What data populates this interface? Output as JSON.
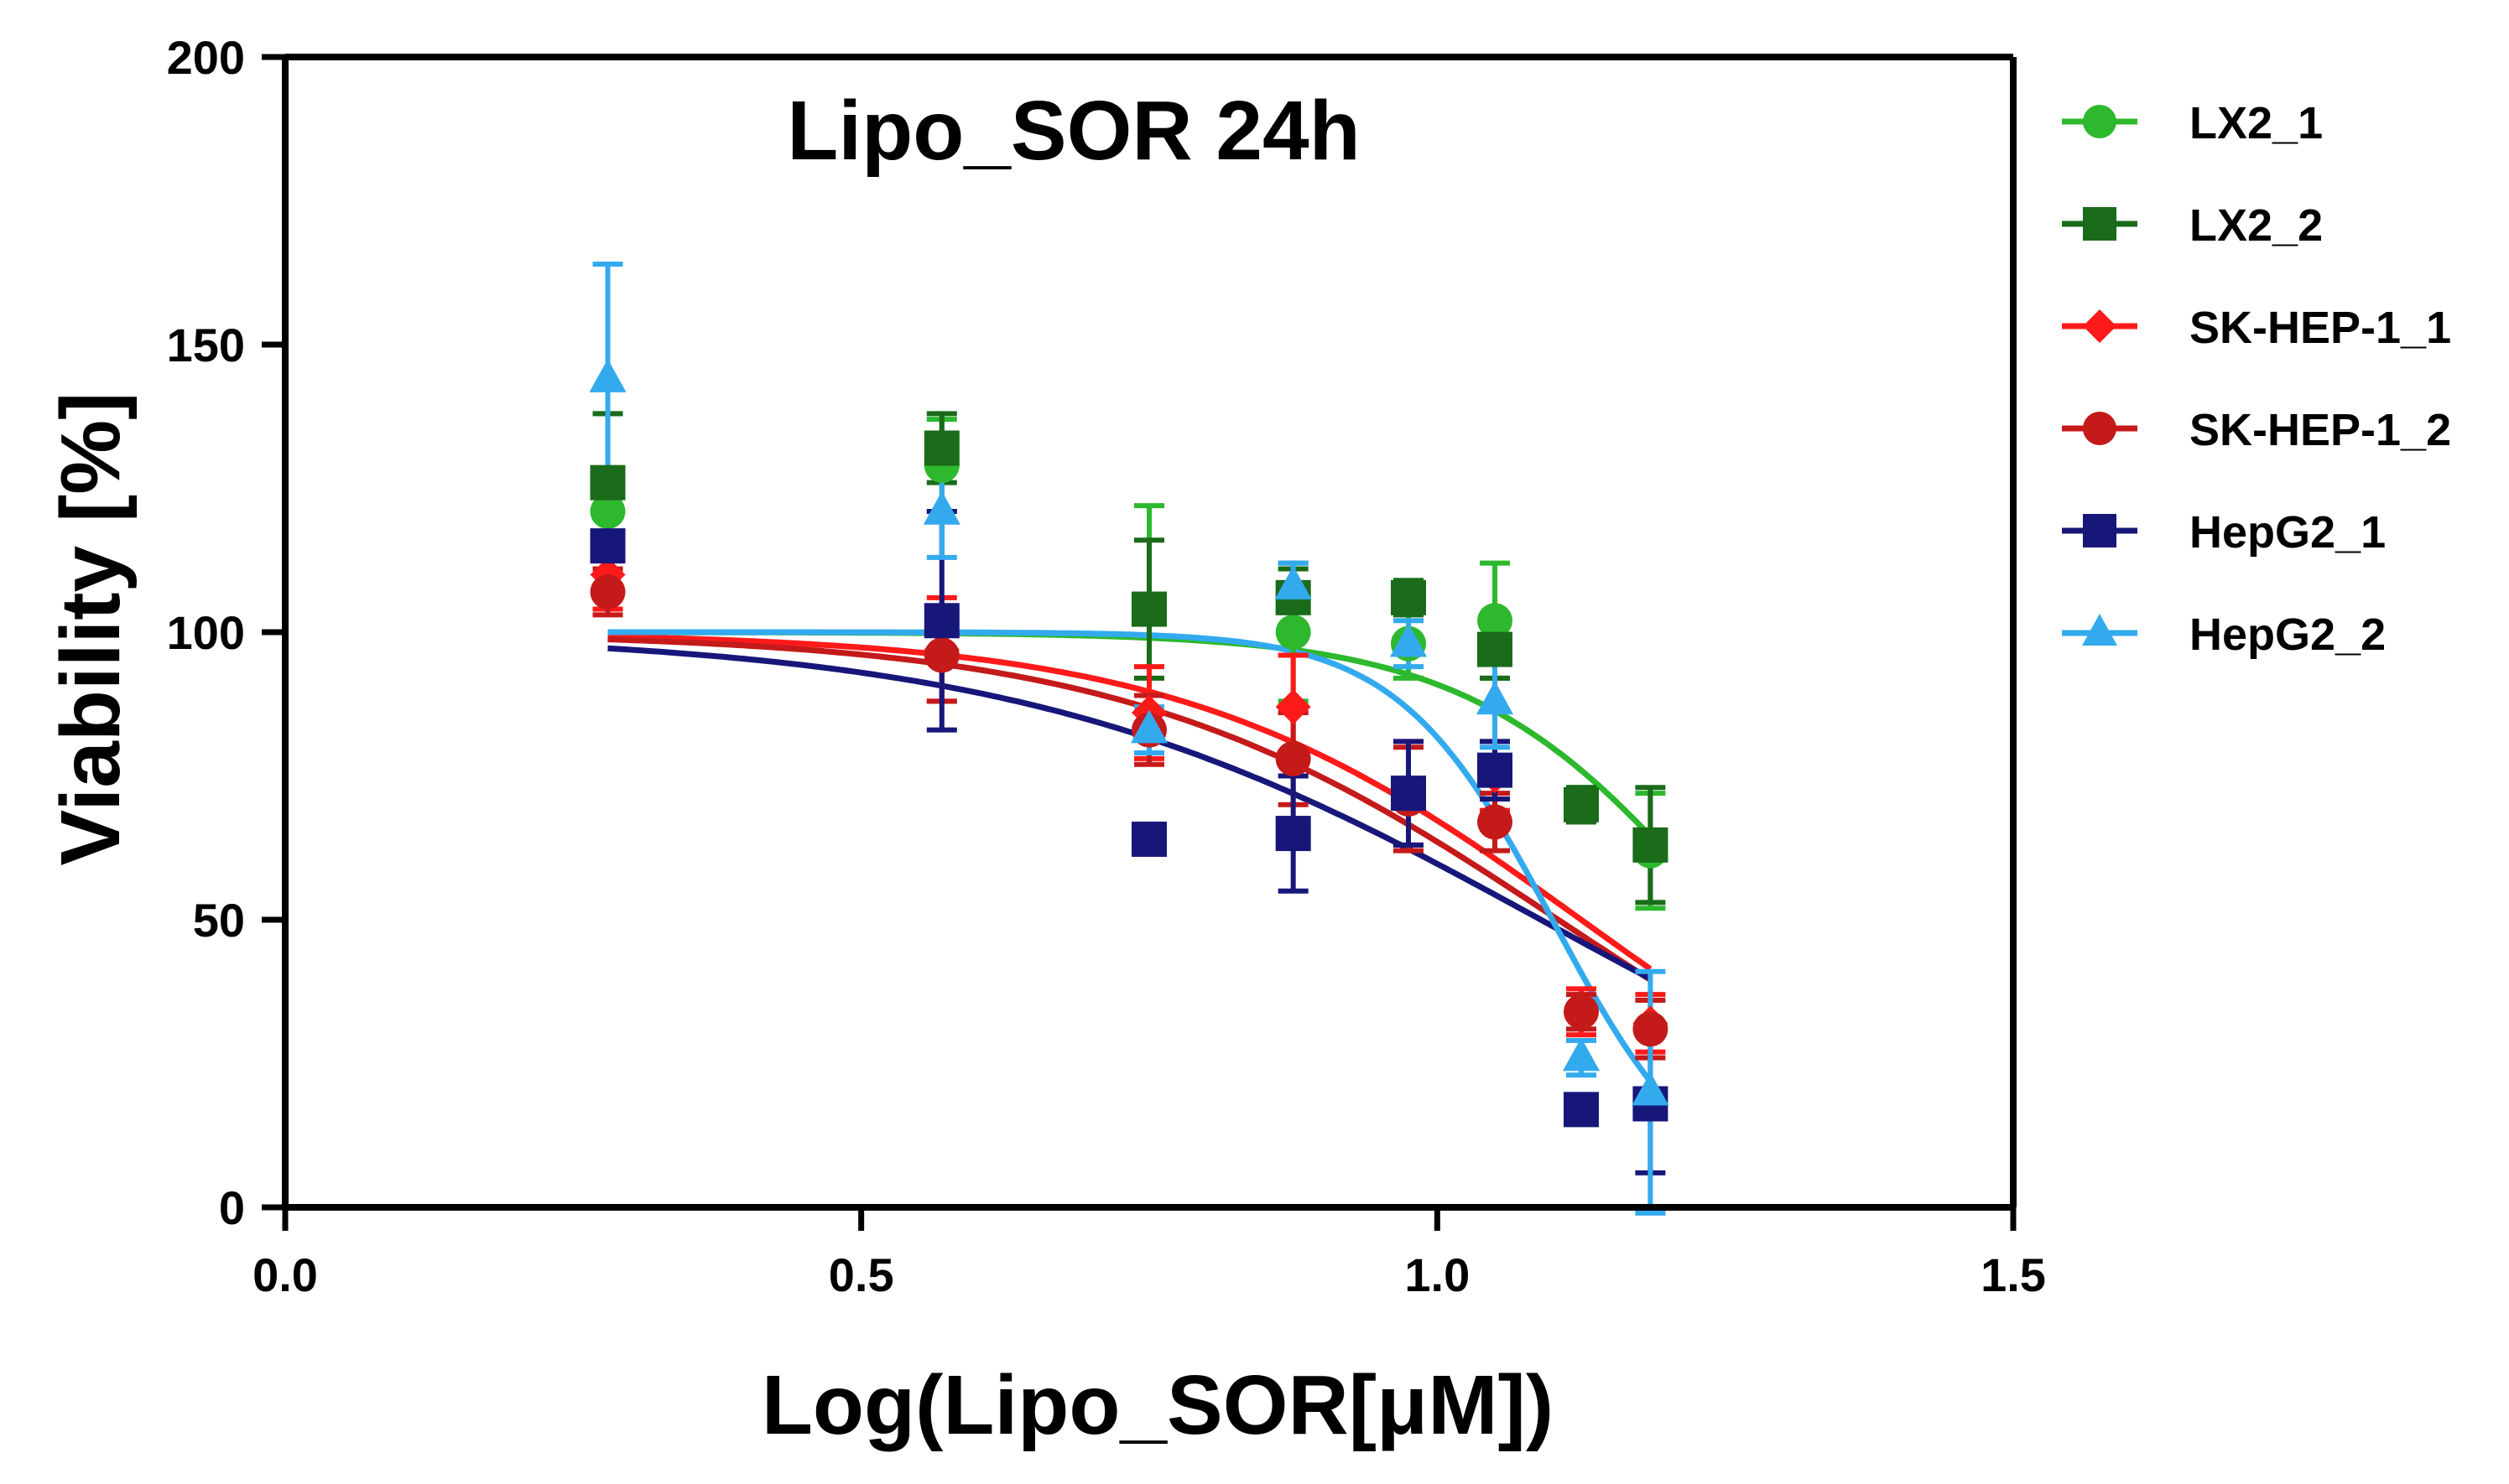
{
  "chart_data": {
    "type": "scatter",
    "title": "Lipo_SOR 24h",
    "xlabel": "Log(Lipo_SOR[μM])",
    "ylabel": "Viability [%]",
    "xlim": [
      0.0,
      1.5
    ],
    "ylim": [
      0,
      200
    ],
    "xticks": [
      0.0,
      0.5,
      1.0,
      1.5
    ],
    "xtick_labels": [
      "0.0",
      "0.5",
      "1.0",
      "1.5"
    ],
    "yticks": [
      0,
      50,
      100,
      150,
      200
    ],
    "ytick_labels": [
      "0",
      "50",
      "100",
      "150",
      "200"
    ],
    "legend_position": "right",
    "x": [
      0.28,
      0.57,
      0.75,
      0.875,
      0.975,
      1.05,
      1.125,
      1.185
    ],
    "series": [
      {
        "name": "LX2_1",
        "color": "#2db82d",
        "marker": "circle",
        "values": [
          121,
          129,
          104,
          100,
          98,
          102,
          70,
          62
        ],
        "errors": [
          17,
          8,
          18,
          12,
          6,
          10,
          3,
          10
        ],
        "fit": {
          "top": 100,
          "bottom": 0,
          "logIC50": 1.25,
          "hill": -4.0
        }
      },
      {
        "name": "LX2_2",
        "color": "#1a6b1a",
        "marker": "square",
        "values": [
          126,
          132,
          104,
          106,
          106,
          97,
          70,
          63
        ],
        "errors": [
          12,
          6,
          12,
          5,
          3,
          5,
          3,
          10
        ],
        "fit": null
      },
      {
        "name": "SK-HEP-1_1",
        "color": "#ff1a1a",
        "marker": "diamond",
        "values": [
          110,
          97,
          86,
          87,
          72,
          75,
          34,
          32
        ],
        "errors": [
          6,
          9,
          8,
          9,
          9,
          6,
          4,
          5
        ],
        "fit": {
          "top": 100,
          "bottom": 0,
          "logIC50": 1.125,
          "hill": -2.5
        }
      },
      {
        "name": "SK-HEP-1_2",
        "color": "#c41a1a",
        "marker": "circle",
        "values": [
          107,
          96,
          83,
          78,
          71,
          67,
          34,
          31
        ],
        "errors": [
          4,
          8,
          6,
          8,
          9,
          5,
          3,
          5
        ],
        "fit": {
          "top": 100,
          "bottom": 0,
          "logIC50": 1.105,
          "hill": -2.3
        }
      },
      {
        "name": "HepG2_1",
        "color": "#17177a",
        "marker": "square",
        "values": [
          115,
          102,
          64,
          65,
          72,
          76,
          17,
          18
        ],
        "errors": [
          5,
          19,
          2,
          10,
          9,
          5,
          2,
          12
        ],
        "fit": {
          "top": 100,
          "bottom": 0,
          "logIC50": 1.09,
          "hill": -1.9
        }
      },
      {
        "name": "HepG2_2",
        "color": "#33aaee",
        "marker": "triangle",
        "values": [
          144,
          121,
          83,
          108,
          98,
          88,
          26,
          20
        ],
        "errors": [
          20,
          8,
          4,
          4,
          4,
          8,
          3,
          21
        ],
        "fit": {
          "top": 100,
          "bottom": 0,
          "logIC50": 1.1,
          "hill": -6.5
        }
      }
    ]
  }
}
